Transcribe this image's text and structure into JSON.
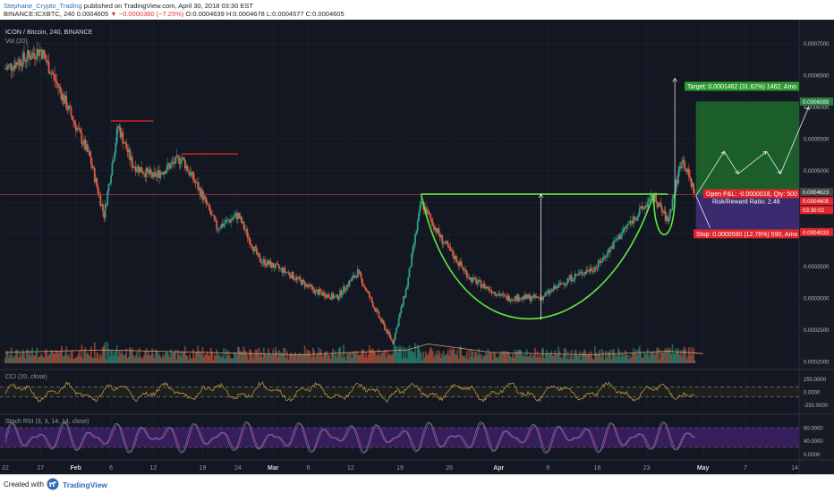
{
  "header": {
    "author": "Stephane_Crypto_Trading",
    "published": " published on TradingView.com, April 30, 2018 03:30 EST",
    "symbol": "BINANCE:ICXBTC, 240",
    "price": " 0.0004605",
    "change": " ▼ −0.0000360 (−7.25%)",
    "ohlc": " O:0.0004639 H:0.0004678 L:0.0004577 C:0.0004605"
  },
  "footer": {
    "created_with": "Created with",
    "brand": "TradingView"
  },
  "colors": {
    "background": "#131722",
    "grid": "#1f2433",
    "up": "#2f9e87",
    "down": "#e05c40",
    "cup_handle": "#62e843",
    "target_zone": "#1e6b2c",
    "stop_zone": "#3f2d7a",
    "target_tag": "#2e9d2f",
    "stop_tag": "#e0252a",
    "cci": "#c9a23a",
    "stoch_k": "#4f7bd7",
    "stoch_d": "#d9475e",
    "stoch_band": "#3d1f66",
    "resistance": "#d42a2a",
    "volume_ma": "#e0a070"
  },
  "chart_data": {
    "type": "candlestick",
    "title": "ICON / Bitcoin, 240, BINANCE",
    "interval": "240",
    "volume_label": "Vol (20)",
    "x_ticks": [
      "22",
      "27",
      "Feb",
      "6",
      "12",
      "19",
      "24",
      "Mar",
      "6",
      "12",
      "19",
      "26",
      "Apr",
      "9",
      "16",
      "23",
      "May",
      "7",
      "14"
    ],
    "y_ticks": [
      "0.0007000",
      "0.0006500",
      "0.0006000",
      "0.0005500",
      "0.0005000",
      "0.0004500",
      "0.0004000",
      "0.0003500",
      "0.0003000",
      "0.0002500",
      "0.0002000"
    ],
    "y_range": [
      0.0002,
      0.00073
    ],
    "last_price": "0.0004605",
    "last_price_value": 0.0004605,
    "price_path": [
      {
        "x": "Jan 22",
        "y": 0.00066
      },
      {
        "x": "Jan 27",
        "y": 0.00069
      },
      {
        "x": "Jan 30",
        "y": 0.00062
      },
      {
        "x": "Feb 3",
        "y": 0.00052
      },
      {
        "x": "Feb 5",
        "y": 0.00043
      },
      {
        "x": "Feb 7",
        "y": 0.00057
      },
      {
        "x": "Feb 9",
        "y": 0.00051
      },
      {
        "x": "Feb 12",
        "y": 0.00049
      },
      {
        "x": "Feb 16",
        "y": 0.00052
      },
      {
        "x": "Feb 19",
        "y": 0.00046
      },
      {
        "x": "Feb 21",
        "y": 0.00041
      },
      {
        "x": "Feb 24",
        "y": 0.00043
      },
      {
        "x": "Feb 27",
        "y": 0.00036
      },
      {
        "x": "Mar 3",
        "y": 0.00034
      },
      {
        "x": "Mar 7",
        "y": 0.00031
      },
      {
        "x": "Mar 10",
        "y": 0.0003
      },
      {
        "x": "Mar 13",
        "y": 0.00034
      },
      {
        "x": "Mar 16",
        "y": 0.00027
      },
      {
        "x": "Mar 18",
        "y": 0.00023
      },
      {
        "x": "Mar 20",
        "y": 0.00032
      },
      {
        "x": "Mar 22",
        "y": 0.00045
      },
      {
        "x": "Mar 25",
        "y": 0.00039
      },
      {
        "x": "Mar 29",
        "y": 0.00033
      },
      {
        "x": "Apr 3",
        "y": 0.0003
      },
      {
        "x": "Apr 8",
        "y": 0.0003
      },
      {
        "x": "Apr 12",
        "y": 0.00033
      },
      {
        "x": "Apr 16",
        "y": 0.00035
      },
      {
        "x": "Apr 20",
        "y": 0.00041
      },
      {
        "x": "Apr 24",
        "y": 0.00046
      },
      {
        "x": "Apr 26",
        "y": 0.00042
      },
      {
        "x": "Apr 28",
        "y": 0.00052
      },
      {
        "x": "Apr 30",
        "y": 0.00046
      }
    ],
    "volume_baseline_x": [
      "Jan 22",
      "May 1"
    ],
    "resistance_lines": [
      {
        "price": 0.000578,
        "from": "Feb 6",
        "to": "Feb 12"
      },
      {
        "price": 0.000526,
        "from": "Feb 16",
        "to": "Feb 24"
      }
    ],
    "horizontal_line": {
      "price": 0.0004623
    },
    "cup": {
      "rim_price": 0.000463,
      "bottom_price": 0.000265,
      "from": "Mar 22",
      "to": "Apr 26"
    },
    "handle": {
      "low_price": 0.000395
    },
    "measured_move": {
      "from": 0.000265,
      "to": 0.000463
    },
    "breakout_arrow": {
      "from": 0.000463,
      "to": 0.000645
    },
    "projection_zigzag": [
      {
        "x": "Apr 30",
        "y": 0.0004605
      },
      {
        "x": "May 4",
        "y": 0.00053
      },
      {
        "x": "May 6",
        "y": 0.000495
      },
      {
        "x": "May 10",
        "y": 0.00053
      },
      {
        "x": "May 12",
        "y": 0.000495
      },
      {
        "x": "May 16",
        "y": 0.0006
      }
    ],
    "down_projection": [
      {
        "x": "Apr 30",
        "y": 0.0004605
      },
      {
        "x": "May 2",
        "y": 0.00041
      }
    ],
    "position": {
      "entry": 0.0004623,
      "target_price": 0.0006085,
      "stop_price": 0.0004033,
      "target_label": "Target: 0.0001462 (31.62%) 1462, Amo",
      "stop_label": "Stop: 0.0000590 (12.76%) 590, Amo",
      "open_pl": "Open P&L: -0.0000018, Qty: 500",
      "risk_reward": "Risk/Reward Ratio: 2.48",
      "price_tags": {
        "target": "0.0006085",
        "entry": "0.0004623",
        "last": "0.0004605",
        "countdown": "03:30:02",
        "stop": "0.0004033"
      }
    },
    "volume_ma_path": [
      {
        "x": "Jan 22",
        "y": 0.45
      },
      {
        "x": "Feb 5",
        "y": 0.55
      },
      {
        "x": "Feb 19",
        "y": 0.45
      },
      {
        "x": "Mar 5",
        "y": 0.35
      },
      {
        "x": "Mar 20",
        "y": 0.55
      },
      {
        "x": "Mar 23",
        "y": 0.8
      },
      {
        "x": "Apr 1",
        "y": 0.45
      },
      {
        "x": "Apr 15",
        "y": 0.35
      },
      {
        "x": "Apr 26",
        "y": 0.5
      },
      {
        "x": "May 1",
        "y": 0.4
      }
    ],
    "cci": {
      "label": "CCI (20, close)",
      "y_ticks": [
        "250.0000",
        "0.0000",
        "-250.0000"
      ],
      "bands": [
        100,
        -100
      ],
      "range": [
        -350,
        350
      ]
    },
    "stoch_rsi": {
      "label": "Stoch RSI (3, 3, 14, 14, close)",
      "y_ticks": [
        "80.0000",
        "40.0000",
        "0.0000"
      ],
      "bands": [
        80,
        20
      ],
      "range": [
        -10,
        110
      ]
    }
  }
}
